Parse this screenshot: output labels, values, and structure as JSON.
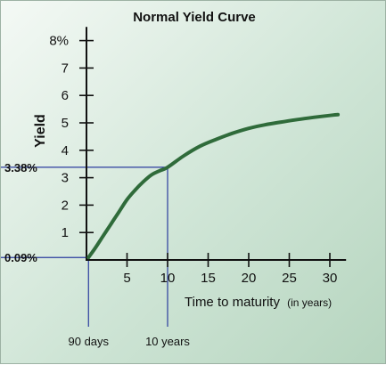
{
  "chart_data": {
    "type": "line",
    "title": "Normal Yield Curve",
    "ylabel": "Yield",
    "xlabel": "Time to maturity",
    "xlabel_suffix": "(in years)",
    "xlim": [
      0,
      32
    ],
    "ylim": [
      0,
      8.5
    ],
    "x_ticks": [
      5,
      10,
      15,
      20,
      25,
      30
    ],
    "x_tick_labels": [
      "5",
      "10",
      "15",
      "20",
      "25",
      "30"
    ],
    "y_ticks": [
      1,
      2,
      3,
      4,
      5,
      6,
      7,
      8
    ],
    "y_tick_labels": [
      "1",
      "2",
      "3",
      "4",
      "5",
      "6",
      "7",
      "8%"
    ],
    "series": [
      {
        "color": "#2f6b3a",
        "x": [
          0.25,
          1,
          2,
          3,
          4,
          5,
          6,
          7,
          8,
          9,
          10,
          12,
          14,
          16,
          18,
          20,
          22,
          24,
          26,
          28,
          30,
          31
        ],
        "y": [
          0.09,
          0.4,
          0.85,
          1.3,
          1.75,
          2.2,
          2.55,
          2.85,
          3.1,
          3.25,
          3.38,
          3.8,
          4.15,
          4.4,
          4.62,
          4.8,
          4.93,
          5.03,
          5.12,
          5.2,
          5.27,
          5.3
        ]
      }
    ],
    "reference_lines": [
      {
        "x": 0.25,
        "y": 0.09,
        "y_label": "0.09%",
        "x_label": "90 days"
      },
      {
        "x": 10,
        "y": 3.38,
        "y_label": "3.38%",
        "x_label": "10 years"
      }
    ],
    "reference_color": "#2b3c9e",
    "grid": false
  }
}
